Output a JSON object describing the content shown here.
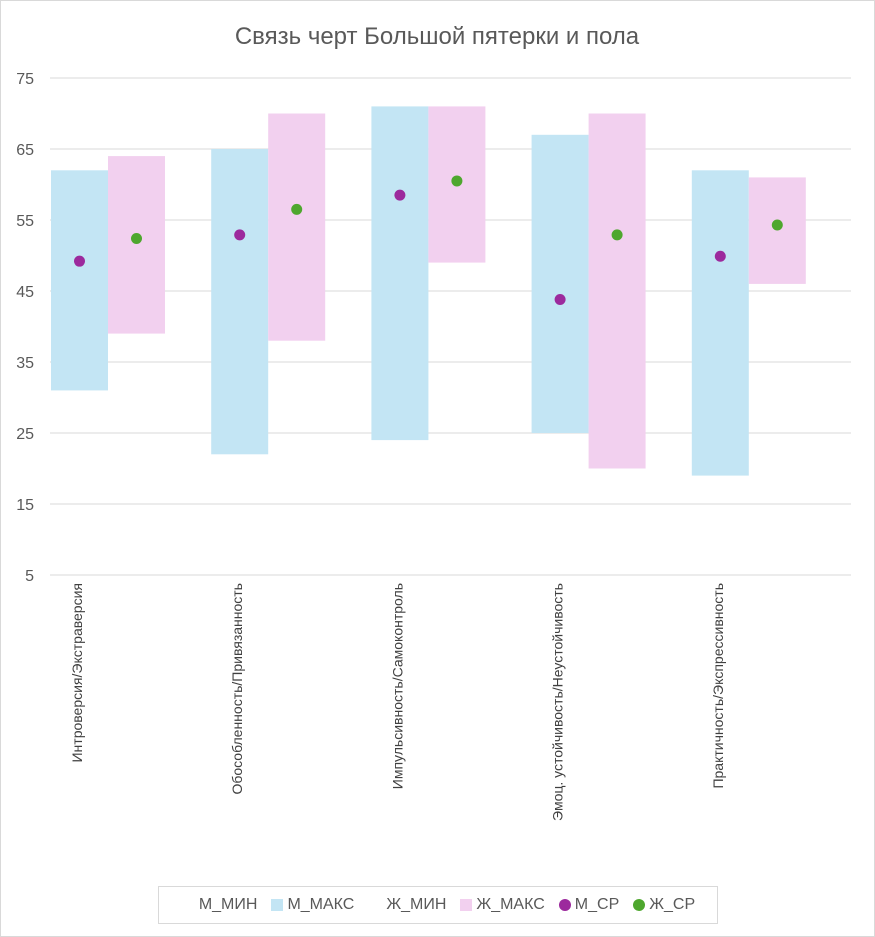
{
  "chart_data": {
    "type": "bar",
    "title": "Связь черт Большой пятерки и пола",
    "categories": [
      "Интроверсия/Экстраверсия",
      "Обособленность/Привязанность",
      "Импульсивность/Самоконтроль",
      "Эмоц. устойчивость/Неустойчивость",
      "Практичность/Экспрессивность"
    ],
    "ylim": [
      5,
      75
    ],
    "yticks": [
      5,
      15,
      25,
      35,
      45,
      55,
      65,
      75
    ],
    "grid": true,
    "legend_position": "bottom",
    "series": [
      {
        "name": "М_МИН",
        "role": "floating-bar-base",
        "values": [
          31,
          22,
          24,
          25,
          19
        ]
      },
      {
        "name": "М_МАКС",
        "role": "floating-bar-top",
        "color": "#c3e5f4",
        "values": [
          62,
          65,
          71,
          67,
          62
        ]
      },
      {
        "name": "Ж_МИН",
        "role": "floating-bar-base",
        "values": [
          39,
          38,
          49,
          20,
          46
        ]
      },
      {
        "name": "Ж_МАКС",
        "role": "floating-bar-top",
        "color": "#f2d0ef",
        "values": [
          64,
          70,
          71,
          70,
          61
        ]
      },
      {
        "name": "М_СР",
        "role": "marker",
        "color": "#9c2a9d",
        "values": [
          49.2,
          52.9,
          58.5,
          43.8,
          49.9
        ]
      },
      {
        "name": "Ж_СР",
        "role": "marker",
        "color": "#4ea72e",
        "values": [
          52.4,
          56.5,
          60.5,
          52.9,
          54.3
        ]
      }
    ]
  }
}
